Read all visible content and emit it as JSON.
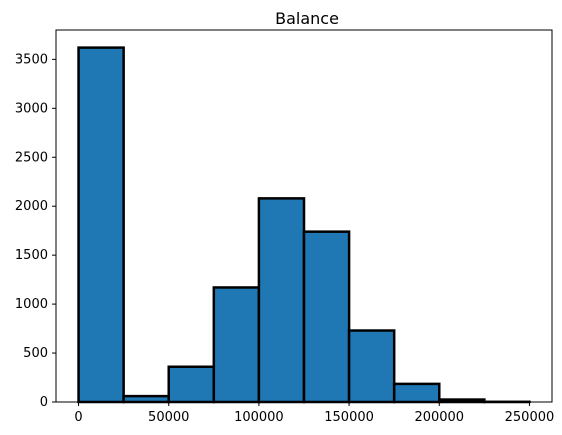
{
  "chart_data": {
    "type": "histogram",
    "title": "Balance",
    "xlabel": "",
    "ylabel": "",
    "xlim": [
      -12500,
      262500
    ],
    "ylim": [
      0,
      3800
    ],
    "bins": [
      {
        "start": 0,
        "end": 25000,
        "count": 3620
      },
      {
        "start": 25000,
        "end": 50000,
        "count": 60
      },
      {
        "start": 50000,
        "end": 75000,
        "count": 360
      },
      {
        "start": 75000,
        "end": 100000,
        "count": 1170
      },
      {
        "start": 100000,
        "end": 125000,
        "count": 2080
      },
      {
        "start": 125000,
        "end": 150000,
        "count": 1740
      },
      {
        "start": 150000,
        "end": 175000,
        "count": 730
      },
      {
        "start": 175000,
        "end": 200000,
        "count": 185
      },
      {
        "start": 200000,
        "end": 225000,
        "count": 25
      },
      {
        "start": 225000,
        "end": 250000,
        "count": 2
      }
    ],
    "xticks": [
      0,
      50000,
      100000,
      150000,
      200000,
      250000
    ],
    "yticks": [
      0,
      500,
      1000,
      1500,
      2000,
      2500,
      3000,
      3500
    ],
    "bar_color": "#1f77b4",
    "edge_color": "#000000",
    "grid": false,
    "legend": "none"
  }
}
